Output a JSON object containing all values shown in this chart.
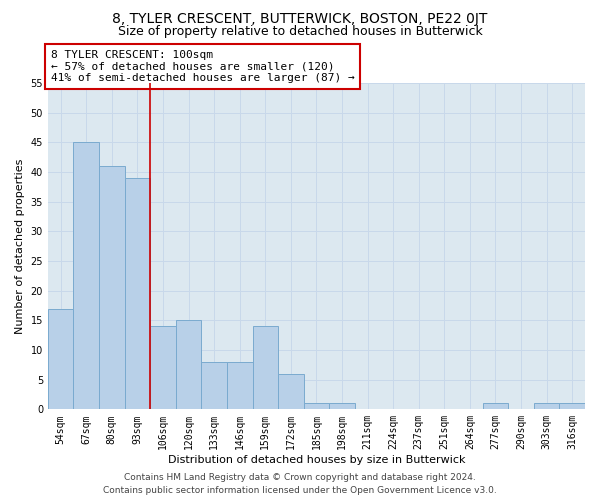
{
  "title": "8, TYLER CRESCENT, BUTTERWICK, BOSTON, PE22 0JT",
  "subtitle": "Size of property relative to detached houses in Butterwick",
  "xlabel": "Distribution of detached houses by size in Butterwick",
  "ylabel": "Number of detached properties",
  "categories": [
    "54sqm",
    "67sqm",
    "80sqm",
    "93sqm",
    "106sqm",
    "120sqm",
    "133sqm",
    "146sqm",
    "159sqm",
    "172sqm",
    "185sqm",
    "198sqm",
    "211sqm",
    "224sqm",
    "237sqm",
    "251sqm",
    "264sqm",
    "277sqm",
    "290sqm",
    "303sqm",
    "316sqm"
  ],
  "values": [
    17,
    45,
    41,
    39,
    14,
    15,
    8,
    8,
    14,
    6,
    1,
    1,
    0,
    0,
    0,
    0,
    0,
    1,
    0,
    1,
    1
  ],
  "bar_color": "#b8d0e8",
  "bar_edge_color": "#7aaacf",
  "grid_color": "#c8d8ea",
  "bg_color": "#dce8f0",
  "red_line_x": 3.5,
  "annotation_box_text": "8 TYLER CRESCENT: 100sqm\n← 57% of detached houses are smaller (120)\n41% of semi-detached houses are larger (87) →",
  "annotation_box_color": "#ffffff",
  "annotation_box_edge_color": "#cc0000",
  "footer_line1": "Contains HM Land Registry data © Crown copyright and database right 2024.",
  "footer_line2": "Contains public sector information licensed under the Open Government Licence v3.0.",
  "ylim": [
    0,
    55
  ],
  "yticks": [
    0,
    5,
    10,
    15,
    20,
    25,
    30,
    35,
    40,
    45,
    50,
    55
  ],
  "title_fontsize": 10,
  "subtitle_fontsize": 9,
  "axis_label_fontsize": 8,
  "tick_fontsize": 7,
  "footer_fontsize": 6.5,
  "annot_fontsize": 8
}
